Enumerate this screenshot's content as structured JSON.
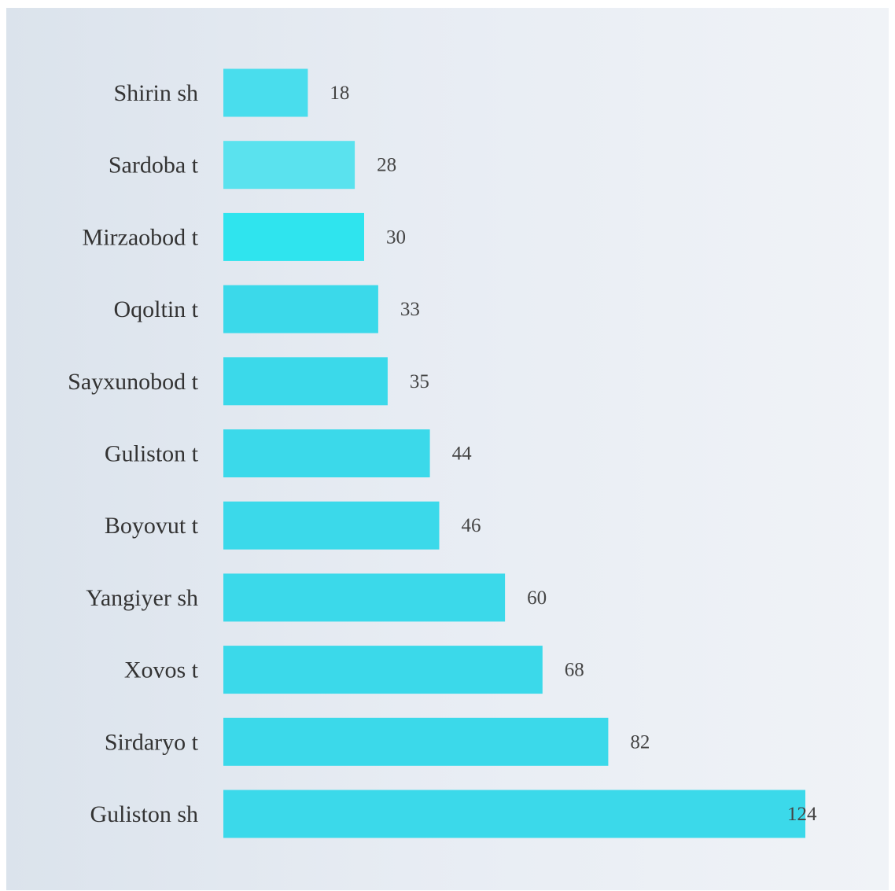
{
  "chart_data": {
    "type": "bar",
    "orientation": "horizontal",
    "categories": [
      "Shirin sh",
      "Sardoba t",
      "Mirzaobod t",
      "Oqoltin t",
      "Sayxunobod t",
      "Guliston t",
      "Boyovut t",
      "Yangiyer sh",
      "Xovos t",
      "Sirdaryo t",
      "Guliston sh"
    ],
    "values": [
      18,
      28,
      30,
      33,
      35,
      44,
      46,
      60,
      68,
      82,
      124
    ],
    "bar_colors": [
      "#49dded",
      "#5ae2ee",
      "#2fe4ee",
      "#3bd9ea",
      "#3bd9ea",
      "#3bd9ea",
      "#3bd9ea",
      "#3bd9ea",
      "#3bd9ea",
      "#3bd9ea",
      "#3bd9ea"
    ],
    "xlim": [
      0,
      124
    ],
    "title": "",
    "xlabel": "",
    "ylabel": "",
    "grid": false,
    "legend": "none",
    "data_labels": true
  }
}
